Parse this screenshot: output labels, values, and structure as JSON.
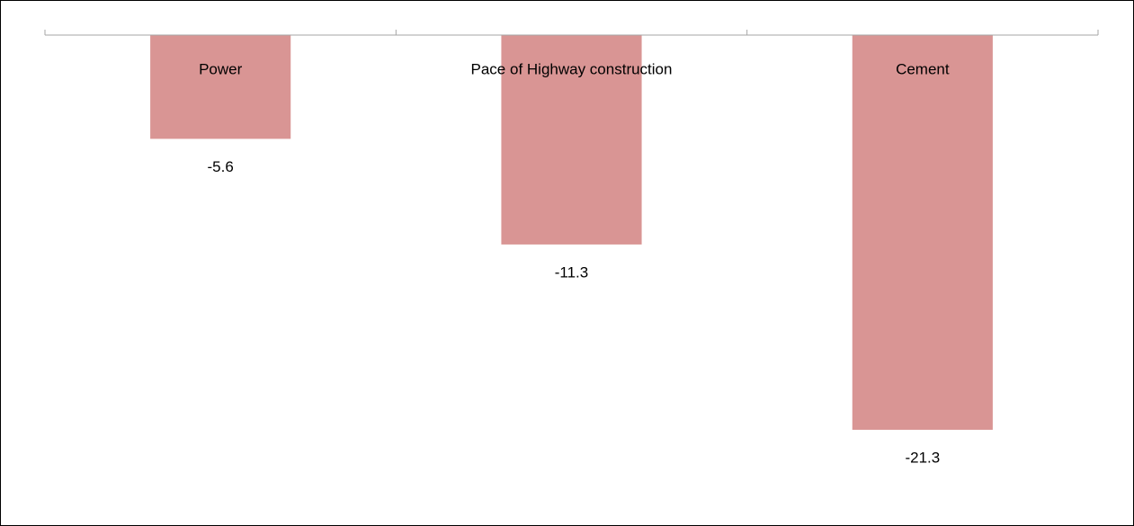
{
  "chart_data": {
    "type": "bar",
    "categories": [
      "Power",
      "Pace of Highway construction",
      "Cement"
    ],
    "values": [
      -5.6,
      -11.3,
      -21.3
    ],
    "color": "#d99594",
    "grid": false
  }
}
